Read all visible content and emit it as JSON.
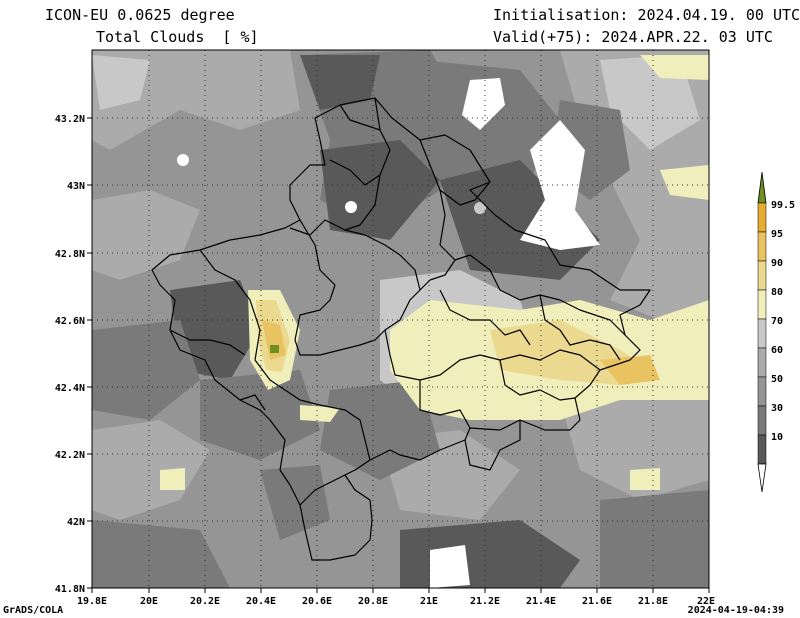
{
  "header": {
    "model": "ICON-EU 0.0625 degree",
    "field": "Total Clouds  [ %]",
    "init": "Initialisation: 2024.04.19. 00 UTC",
    "valid": "Valid(+75): 2024.APR.22. 03 UTC"
  },
  "footer": {
    "software": "GrADS/COLA",
    "timestamp": "2024-04-19-04:39"
  },
  "map": {
    "lon_labels": [
      "19.8E",
      "20E",
      "20.2E",
      "20.4E",
      "20.6E",
      "20.8E",
      "21E",
      "21.2E",
      "21.4E",
      "21.6E",
      "21.8E",
      "22E"
    ],
    "lat_labels": [
      "41.8N",
      "42N",
      "42.2N",
      "42.4N",
      "42.6N",
      "42.8N",
      "43N",
      "43.2N"
    ]
  },
  "legend": {
    "labels": [
      "10",
      "30",
      "50",
      "60",
      "70",
      "80",
      "90",
      "95",
      "99.5"
    ],
    "colors": [
      "#ffffff",
      "#595959",
      "#7a7a7a",
      "#959595",
      "#ababab",
      "#c8c8c8",
      "#f0eebb",
      "#ebd98f",
      "#e9c262",
      "#e6ad2f",
      "#6f8f22"
    ]
  }
}
